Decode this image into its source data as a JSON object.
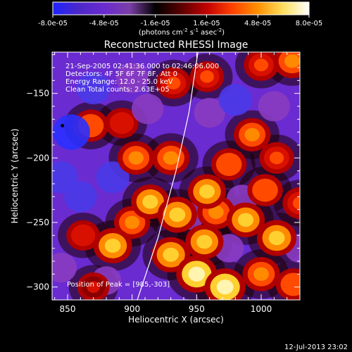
{
  "colorbar": {
    "tick_labels": [
      "-8.0e-05",
      "-4.8e-05",
      "-1.6e-05",
      "1.6e-05",
      "4.8e-05",
      "8.0e-05"
    ],
    "units_prefix": "(photons cm",
    "units_exp1": "-2",
    "units_mid": " s",
    "units_exp2": "-1",
    "units_mid2": " asec",
    "units_exp3": "-2",
    "units_suffix": ")",
    "range": [
      -8e-05,
      8e-05
    ]
  },
  "chart_data": {
    "type": "heatmap",
    "title": "Reconstructed RHESSI Image",
    "xlabel": "Heliocentric X (arcsec)",
    "ylabel": "Heliocentric Y (arcsec)",
    "xlim": [
      838,
      1030
    ],
    "ylim": [
      -310,
      -118
    ],
    "x_ticks": [
      850,
      900,
      950,
      1000
    ],
    "y_ticks": [
      -150,
      -200,
      -250,
      -300
    ],
    "annotations": [
      "21-Sep-2005 02:41:36.000 to 02:46:06.000",
      "Detectors: 4F 5F 6F 7F 8F, Att 0",
      "Energy Range: 12.0 - 25.0 keV",
      "Clean    Total counts: 2.63E+05"
    ],
    "peak_label": "Position of Peak = [985,-303]",
    "marker": {
      "x": 846,
      "y": -175
    },
    "limb_curve": [
      [
        904,
        -310
      ],
      [
        920,
        -262
      ],
      [
        934,
        -210
      ],
      [
        944,
        -165
      ],
      [
        951,
        -118
      ]
    ],
    "colormap": [
      "#1e22ff",
      "#4b28c8",
      "#6a2bd0",
      "#7b3fa6",
      "#000000",
      "#5a0000",
      "#c00000",
      "#ff4000",
      "#ff9000",
      "#ffe060",
      "#ffffff"
    ],
    "blobs": [
      {
        "x": 950,
        "y": -290,
        "v": 1.0
      },
      {
        "x": 972,
        "y": -300,
        "v": 1.0
      },
      {
        "x": 1000,
        "y": -290,
        "v": 0.75
      },
      {
        "x": 1025,
        "y": -298,
        "v": 0.6
      },
      {
        "x": 1012,
        "y": -262,
        "v": 0.9
      },
      {
        "x": 988,
        "y": -248,
        "v": 0.8
      },
      {
        "x": 965,
        "y": -242,
        "v": 0.75
      },
      {
        "x": 958,
        "y": -226,
        "v": 0.8
      },
      {
        "x": 935,
        "y": -244,
        "v": 0.9
      },
      {
        "x": 914,
        "y": -234,
        "v": 0.8
      },
      {
        "x": 900,
        "y": -250,
        "v": 0.65
      },
      {
        "x": 885,
        "y": -268,
        "v": 0.85
      },
      {
        "x": 930,
        "y": -275,
        "v": 0.85
      },
      {
        "x": 956,
        "y": -265,
        "v": 0.8
      },
      {
        "x": 903,
        "y": -200,
        "v": 0.7
      },
      {
        "x": 930,
        "y": -200,
        "v": 0.75
      },
      {
        "x": 892,
        "y": -173,
        "v": 0.45
      },
      {
        "x": 868,
        "y": -175,
        "v": 0.6
      },
      {
        "x": 932,
        "y": -142,
        "v": 0.55
      },
      {
        "x": 958,
        "y": -137,
        "v": 0.5
      },
      {
        "x": 1000,
        "y": -128,
        "v": 0.55
      },
      {
        "x": 1024,
        "y": -125,
        "v": 0.75
      },
      {
        "x": 993,
        "y": -182,
        "v": 0.7
      },
      {
        "x": 1012,
        "y": -200,
        "v": 0.55
      },
      {
        "x": 1003,
        "y": -225,
        "v": 0.6
      },
      {
        "x": 975,
        "y": -205,
        "v": 0.6
      },
      {
        "x": 1030,
        "y": -235,
        "v": 0.55
      },
      {
        "x": 862,
        "y": -260,
        "v": 0.45
      },
      {
        "x": 870,
        "y": -300,
        "v": 0.35
      },
      {
        "x": 853,
        "y": -180,
        "v": -0.85
      },
      {
        "x": 870,
        "y": -146,
        "v": -0.6
      },
      {
        "x": 845,
        "y": -215,
        "v": -0.6
      },
      {
        "x": 860,
        "y": -230,
        "v": -0.5
      },
      {
        "x": 900,
        "y": -138,
        "v": -0.45
      },
      {
        "x": 912,
        "y": -162,
        "v": -0.45
      },
      {
        "x": 885,
        "y": -215,
        "v": -0.55
      },
      {
        "x": 960,
        "y": -165,
        "v": -0.4
      },
      {
        "x": 980,
        "y": -155,
        "v": -0.55
      },
      {
        "x": 1010,
        "y": -160,
        "v": -0.45
      },
      {
        "x": 845,
        "y": -285,
        "v": -0.4
      },
      {
        "x": 880,
        "y": -295,
        "v": -0.3
      },
      {
        "x": 985,
        "y": -232,
        "v": -0.35
      },
      {
        "x": 1030,
        "y": -270,
        "v": -0.35
      },
      {
        "x": 975,
        "y": -270,
        "v": -0.3
      },
      {
        "x": 945,
        "y": -245,
        "v": -0.2
      }
    ]
  },
  "footer_date": "12-Jul-2013 23:02"
}
